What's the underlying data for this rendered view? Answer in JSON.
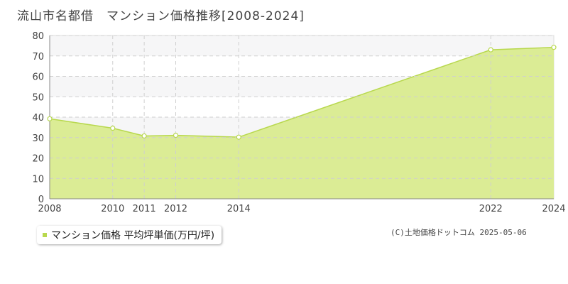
{
  "title": "流山市名都借　マンション価格推移[2008-2024]",
  "credit": "(C)土地価格ドットコム 2025-05-06",
  "colors": {
    "area_fill": "#dbec95",
    "line": "#b8d84e",
    "band": "#f6f6f7",
    "grid": "#cfcfcf",
    "point_fill": "#ffffff"
  },
  "chart_data": {
    "type": "area",
    "title": "流山市名都借　マンション価格推移[2008-2024]",
    "xlabel": "",
    "ylabel": "",
    "x_ticks": [
      "2008",
      "2010",
      "2011",
      "2012",
      "2014",
      "2022",
      "2024"
    ],
    "y_ticks": [
      "0",
      "10",
      "20",
      "30",
      "40",
      "50",
      "60",
      "70",
      "80"
    ],
    "ylim": [
      0,
      80
    ],
    "grid": true,
    "legend_position": "bottom-left",
    "series": [
      {
        "name": "マンション価格 平均坪単価(万円/坪)",
        "x": [
          "2008",
          "2010",
          "2011",
          "2012",
          "2014",
          "2022",
          "2024"
        ],
        "values": [
          39.2,
          34.6,
          30.8,
          31.1,
          30.2,
          73.0,
          74.2
        ]
      }
    ]
  }
}
